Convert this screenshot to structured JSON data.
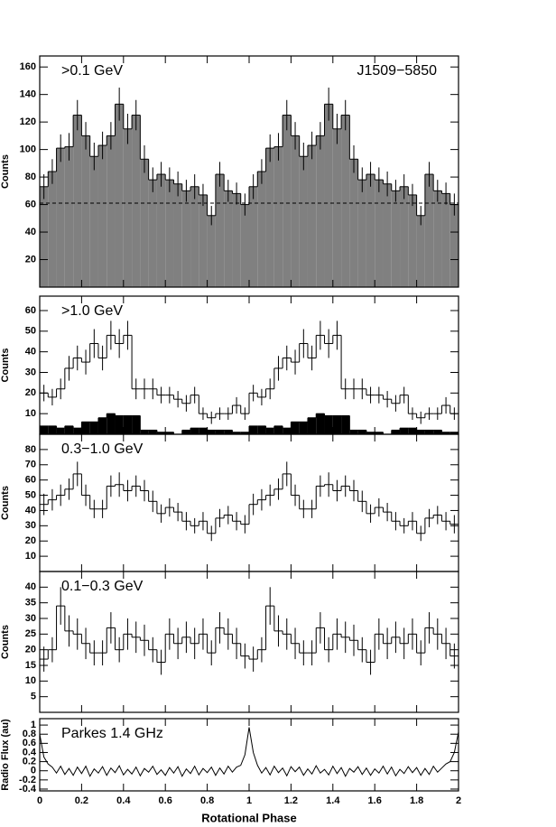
{
  "chart_data": [
    {
      "type": "histogram",
      "label": ">0.1 GeV",
      "annotation": "J1509−5850",
      "y_label": "Counts",
      "bins": [
        0,
        0.04,
        0.08,
        0.12,
        0.16,
        0.2,
        0.24,
        0.28,
        0.32,
        0.36,
        0.4,
        0.44,
        0.48,
        0.52,
        0.56,
        0.6,
        0.64,
        0.68,
        0.72,
        0.76,
        0.8,
        0.84,
        0.88,
        0.92,
        0.96,
        1,
        1.04,
        1.08,
        1.12,
        1.16,
        1.2,
        1.24,
        1.28,
        1.32,
        1.36,
        1.4,
        1.44,
        1.48,
        1.52,
        1.56,
        1.6,
        1.64,
        1.68,
        1.72,
        1.76,
        1.8,
        1.84,
        1.88,
        1.92,
        1.96,
        2
      ],
      "series": [
        {
          "color": "#808080",
          "fill": true,
          "values": [
            73,
            84,
            101,
            102,
            125,
            110,
            95,
            103,
            110,
            133,
            115,
            125,
            93,
            78,
            82,
            78,
            75,
            70,
            73,
            67,
            52,
            82,
            70,
            68,
            60,
            73,
            84,
            101,
            102,
            125,
            110,
            95,
            103,
            110,
            133,
            115,
            125,
            93,
            78,
            82,
            78,
            75,
            70,
            73,
            67,
            52,
            82,
            70,
            68,
            60
          ],
          "errors": [
            9,
            9,
            10,
            10,
            11,
            10,
            10,
            10,
            10,
            12,
            11,
            11,
            10,
            9,
            9,
            9,
            9,
            8,
            9,
            8,
            7,
            9,
            8,
            8,
            8,
            9,
            9,
            10,
            10,
            11,
            10,
            10,
            10,
            10,
            12,
            11,
            11,
            10,
            9,
            9,
            9,
            9,
            8,
            9,
            8,
            7,
            9,
            8,
            8,
            8
          ]
        }
      ],
      "reference": 61,
      "xlim": [
        0,
        2
      ],
      "xticks": [
        0,
        0.2,
        0.4,
        0.6,
        0.8,
        1,
        1.2,
        1.4,
        1.6,
        1.8,
        2
      ],
      "show_xtick_labels": false,
      "ylim": [
        0,
        168
      ],
      "yticks": [
        20,
        40,
        60,
        80,
        100,
        120,
        140,
        160
      ]
    },
    {
      "type": "histogram",
      "label": ">1.0 GeV",
      "y_label": "Counts",
      "bins": [
        0,
        0.04,
        0.08,
        0.12,
        0.16,
        0.2,
        0.24,
        0.28,
        0.32,
        0.36,
        0.4,
        0.44,
        0.48,
        0.52,
        0.56,
        0.6,
        0.64,
        0.68,
        0.72,
        0.76,
        0.8,
        0.84,
        0.88,
        0.92,
        0.96,
        1,
        1.04,
        1.08,
        1.12,
        1.16,
        1.2,
        1.24,
        1.28,
        1.32,
        1.36,
        1.4,
        1.44,
        1.48,
        1.52,
        1.56,
        1.6,
        1.64,
        1.68,
        1.72,
        1.76,
        1.8,
        1.84,
        1.88,
        1.92,
        1.96,
        2
      ],
      "series": [
        {
          "color": "#000000",
          "fill": false,
          "values": [
            20,
            18,
            22,
            32,
            37,
            35,
            44,
            37,
            48,
            44,
            48,
            22,
            22,
            22,
            19,
            19,
            17,
            15,
            19,
            10,
            8,
            10,
            10,
            14,
            10,
            20,
            18,
            22,
            32,
            37,
            35,
            44,
            37,
            48,
            44,
            48,
            22,
            22,
            22,
            19,
            19,
            17,
            15,
            19,
            10,
            8,
            10,
            10,
            14,
            10
          ],
          "errors": [
            4,
            4,
            5,
            6,
            6,
            6,
            7,
            6,
            7,
            7,
            7,
            5,
            5,
            5,
            4,
            4,
            4,
            4,
            4,
            3,
            3,
            3,
            3,
            4,
            3,
            4,
            4,
            5,
            6,
            6,
            6,
            7,
            6,
            7,
            7,
            7,
            5,
            5,
            5,
            4,
            4,
            4,
            4,
            4,
            3,
            3,
            3,
            3,
            4,
            3
          ]
        },
        {
          "color": "#000000",
          "fill": true,
          "values": [
            4,
            4,
            3,
            4,
            3,
            6,
            6,
            8,
            10,
            9,
            9,
            9,
            2,
            2,
            1,
            1,
            0,
            2,
            3,
            3,
            2,
            2,
            2,
            1,
            1,
            4,
            4,
            3,
            4,
            3,
            6,
            6,
            8,
            10,
            9,
            9,
            9,
            2,
            2,
            1,
            1,
            0,
            2,
            3,
            3,
            2,
            2,
            2,
            1,
            1
          ]
        }
      ],
      "xlim": [
        0,
        2
      ],
      "xticks": [
        0,
        0.2,
        0.4,
        0.6,
        0.8,
        1,
        1.2,
        1.4,
        1.6,
        1.8,
        2
      ],
      "show_xtick_labels": false,
      "ylim": [
        0,
        67
      ],
      "yticks": [
        10,
        20,
        30,
        40,
        50,
        60
      ]
    },
    {
      "type": "histogram",
      "label": "0.3−1.0 GeV",
      "y_label": "Counts",
      "bins": [
        0,
        0.04,
        0.08,
        0.12,
        0.16,
        0.2,
        0.24,
        0.28,
        0.32,
        0.36,
        0.4,
        0.44,
        0.48,
        0.52,
        0.56,
        0.6,
        0.64,
        0.68,
        0.72,
        0.76,
        0.8,
        0.84,
        0.88,
        0.92,
        0.96,
        1,
        1.04,
        1.08,
        1.12,
        1.16,
        1.2,
        1.24,
        1.28,
        1.32,
        1.36,
        1.4,
        1.44,
        1.48,
        1.52,
        1.56,
        1.6,
        1.64,
        1.68,
        1.72,
        1.76,
        1.8,
        1.84,
        1.88,
        1.92,
        1.96,
        2
      ],
      "series": [
        {
          "color": "#000000",
          "fill": false,
          "values": [
            44,
            47,
            50,
            54,
            64,
            50,
            41,
            41,
            56,
            57,
            53,
            56,
            53,
            46,
            38,
            42,
            39,
            33,
            30,
            33,
            25,
            35,
            37,
            33,
            31,
            44,
            47,
            50,
            54,
            64,
            50,
            41,
            41,
            56,
            57,
            53,
            56,
            53,
            46,
            38,
            42,
            39,
            33,
            30,
            33,
            25,
            35,
            37,
            33,
            31
          ],
          "errors": [
            7,
            7,
            7,
            7,
            8,
            7,
            6,
            6,
            7,
            8,
            7,
            7,
            7,
            7,
            6,
            6,
            6,
            6,
            5,
            6,
            5,
            6,
            6,
            6,
            6,
            7,
            7,
            7,
            7,
            8,
            7,
            6,
            6,
            7,
            8,
            7,
            7,
            7,
            7,
            6,
            6,
            6,
            6,
            5,
            6,
            5,
            6,
            6,
            6,
            6
          ]
        }
      ],
      "xlim": [
        0,
        2
      ],
      "xticks": [
        0,
        0.2,
        0.4,
        0.6,
        0.8,
        1,
        1.2,
        1.4,
        1.6,
        1.8,
        2
      ],
      "show_xtick_labels": false,
      "ylim": [
        0,
        90
      ],
      "yticks": [
        10,
        20,
        30,
        40,
        50,
        60,
        70,
        80
      ]
    },
    {
      "type": "histogram",
      "label": "0.1−0.3 GeV",
      "y_label": "Counts",
      "bins": [
        0,
        0.04,
        0.08,
        0.12,
        0.16,
        0.2,
        0.24,
        0.28,
        0.32,
        0.36,
        0.4,
        0.44,
        0.48,
        0.52,
        0.56,
        0.6,
        0.64,
        0.68,
        0.72,
        0.76,
        0.8,
        0.84,
        0.88,
        0.92,
        0.96,
        1,
        1.04,
        1.08,
        1.12,
        1.16,
        1.2,
        1.24,
        1.28,
        1.32,
        1.36,
        1.4,
        1.44,
        1.48,
        1.52,
        1.56,
        1.6,
        1.64,
        1.68,
        1.72,
        1.76,
        1.8,
        1.84,
        1.88,
        1.92,
        1.96,
        2
      ],
      "series": [
        {
          "color": "#000000",
          "fill": false,
          "values": [
            17,
            20,
            34,
            26,
            25,
            22,
            19,
            19,
            27,
            20,
            25,
            24,
            23,
            20,
            16,
            25,
            22,
            24,
            22,
            25,
            19,
            27,
            25,
            22,
            18,
            17,
            20,
            34,
            26,
            25,
            22,
            19,
            19,
            27,
            20,
            25,
            24,
            23,
            20,
            16,
            25,
            22,
            24,
            22,
            25,
            19,
            27,
            25,
            22,
            18
          ],
          "errors": [
            4,
            4,
            6,
            5,
            5,
            5,
            4,
            4,
            5,
            4,
            5,
            5,
            5,
            4,
            4,
            5,
            5,
            5,
            5,
            5,
            4,
            5,
            5,
            5,
            4,
            4,
            4,
            6,
            5,
            5,
            5,
            4,
            4,
            5,
            4,
            5,
            5,
            5,
            4,
            4,
            5,
            5,
            5,
            5,
            5,
            4,
            5,
            5,
            5,
            4
          ]
        }
      ],
      "xlim": [
        0,
        2
      ],
      "xticks": [
        0,
        0.2,
        0.4,
        0.6,
        0.8,
        1,
        1.2,
        1.4,
        1.6,
        1.8,
        2
      ],
      "show_xtick_labels": false,
      "ylim": [
        0,
        45
      ],
      "yticks": [
        5,
        10,
        15,
        20,
        25,
        30,
        35,
        40
      ]
    },
    {
      "type": "line",
      "label": "Parkes 1.4 GHz",
      "y_label": "Radio Flux (au)",
      "x_label": "Rotational Phase",
      "color": "#000000",
      "x": [
        0,
        0.02,
        0.04,
        0.06,
        0.08,
        0.1,
        0.12,
        0.14,
        0.16,
        0.18,
        0.2,
        0.22,
        0.24,
        0.26,
        0.28,
        0.3,
        0.32,
        0.34,
        0.36,
        0.38,
        0.4,
        0.42,
        0.44,
        0.46,
        0.48,
        0.5,
        0.52,
        0.54,
        0.56,
        0.58,
        0.6,
        0.62,
        0.64,
        0.66,
        0.68,
        0.7,
        0.72,
        0.74,
        0.76,
        0.78,
        0.8,
        0.82,
        0.84,
        0.86,
        0.88,
        0.9,
        0.92,
        0.94,
        0.96,
        0.98,
        1,
        1.02,
        1.04,
        1.06,
        1.08,
        1.1,
        1.12,
        1.14,
        1.16,
        1.18,
        1.2,
        1.22,
        1.24,
        1.26,
        1.28,
        1.3,
        1.32,
        1.34,
        1.36,
        1.38,
        1.4,
        1.42,
        1.44,
        1.46,
        1.48,
        1.5,
        1.52,
        1.54,
        1.56,
        1.58,
        1.6,
        1.62,
        1.64,
        1.66,
        1.68,
        1.7,
        1.72,
        1.74,
        1.76,
        1.78,
        1.8,
        1.82,
        1.84,
        1.86,
        1.88,
        1.9,
        1.92,
        1.94,
        1.96,
        1.98,
        2
      ],
      "values": [
        0.8,
        0.3,
        0.15,
        0.08,
        -0.05,
        0.1,
        -0.08,
        0.05,
        -0.1,
        0.08,
        -0.06,
        0.1,
        -0.12,
        0.04,
        -0.05,
        0.09,
        -0.1,
        0.06,
        -0.04,
        0.11,
        -0.09,
        0.03,
        -0.07,
        0.08,
        -0.11,
        0.05,
        -0.03,
        0.1,
        -0.08,
        0.02,
        -0.1,
        0.07,
        -0.05,
        0.09,
        -0.12,
        0.04,
        -0.06,
        0.1,
        -0.09,
        0.05,
        -0.04,
        0.08,
        -0.1,
        0.06,
        -0.07,
        0.1,
        -0.03,
        0.08,
        0.12,
        0.35,
        0.95,
        0.4,
        0.12,
        -0.05,
        0.07,
        -0.09,
        0.1,
        -0.04,
        0.06,
        -0.11,
        0.09,
        -0.02,
        0.08,
        -0.1,
        0.04,
        -0.07,
        0.11,
        -0.05,
        0.03,
        -0.09,
        0.1,
        -0.06,
        0.07,
        -0.12,
        0.05,
        -0.03,
        0.09,
        -0.08,
        0.06,
        -0.1,
        0.04,
        -0.05,
        0.1,
        -0.07,
        0.08,
        -0.11,
        0.03,
        -0.06,
        0.09,
        -0.04,
        0.07,
        -0.1,
        0.05,
        -0.08,
        0.1,
        -0.03,
        0.06,
        0.15,
        0.2,
        0.4,
        0.85
      ],
      "xlim": [
        0,
        2
      ],
      "xticks": [
        0,
        0.2,
        0.4,
        0.6,
        0.8,
        1,
        1.2,
        1.4,
        1.6,
        1.8,
        2
      ],
      "show_xtick_labels": true,
      "ylim": [
        -0.44,
        1.14
      ],
      "yticks": [
        -0.4,
        -0.2,
        0,
        0.2,
        0.4,
        0.6,
        0.8,
        1
      ]
    }
  ]
}
